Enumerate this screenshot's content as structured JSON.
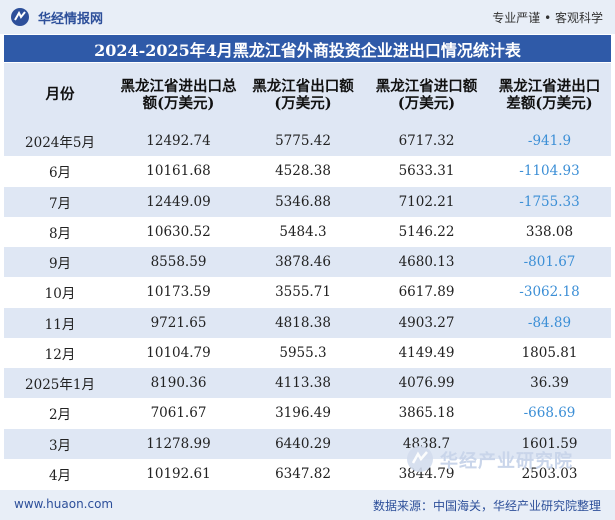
{
  "header": {
    "brand_name": "华经情报网",
    "slogan": "专业严谨 • 客观科学"
  },
  "title": "2024-2025年4月黑龙江省外商投资企业进出口情况统计表",
  "table": {
    "columns": [
      "月份",
      "黑龙江省进出口总额(万美元)",
      "黑龙江省出口额(万美元)",
      "黑龙江省进口额(万美元)",
      "黑龙江省进出口差额(万美元)"
    ],
    "rows": [
      [
        "2024年5月",
        "12492.74",
        "5775.42",
        "6717.32",
        "-941.9"
      ],
      [
        "6月",
        "10161.68",
        "4528.38",
        "5633.31",
        "-1104.93"
      ],
      [
        "7月",
        "12449.09",
        "5346.88",
        "7102.21",
        "-1755.33"
      ],
      [
        "8月",
        "10630.52",
        "5484.3",
        "5146.22",
        "338.08"
      ],
      [
        "9月",
        "8558.59",
        "3878.46",
        "4680.13",
        "-801.67"
      ],
      [
        "10月",
        "10173.59",
        "3555.71",
        "6617.89",
        "-3062.18"
      ],
      [
        "11月",
        "9721.65",
        "4818.38",
        "4903.27",
        "-84.89"
      ],
      [
        "12月",
        "10104.79",
        "5955.3",
        "4149.49",
        "1805.81"
      ],
      [
        "2025年1月",
        "8190.36",
        "4113.38",
        "4076.99",
        "36.39"
      ],
      [
        "2月",
        "7061.67",
        "3196.49",
        "3865.18",
        "-668.69"
      ],
      [
        "3月",
        "11278.99",
        "6440.29",
        "4838.7",
        "1601.59"
      ],
      [
        "4月",
        "10192.61",
        "6347.82",
        "3844.79",
        "2503.03"
      ]
    ]
  },
  "watermark": "华经产业研究院",
  "footer": {
    "website": "www.huaon.com",
    "source": "数据来源：中国海关，华经产业研究院整理"
  },
  "colors": {
    "title_bg": "#2f5aa8",
    "stripe": "#dfe7f4",
    "negative": "#3c8fd6",
    "brand": "#2d4f9a"
  }
}
